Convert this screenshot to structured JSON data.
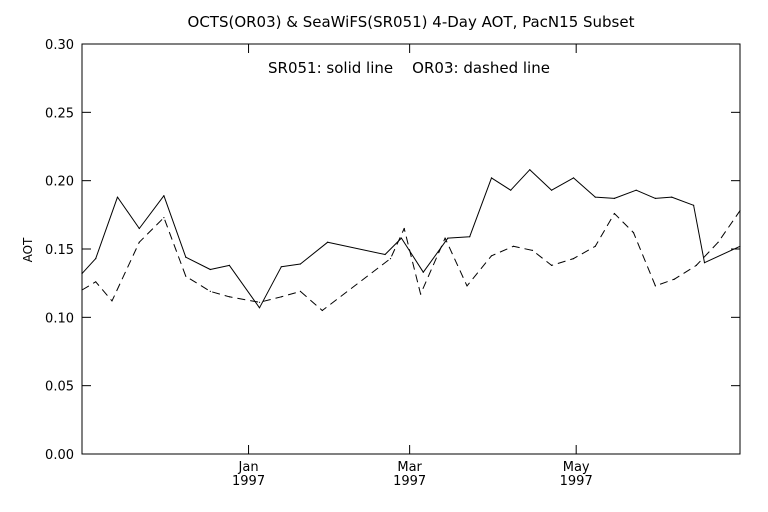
{
  "chart_data": {
    "type": "line",
    "title": "OCTS(OR03) & SeaWiFS(SR051) 4-Day AOT, PacN15 Subset",
    "annotation": "SR051: solid line    OR03: dashed line",
    "xlabel": "",
    "ylabel": "AOT",
    "ylim": [
      0.0,
      0.3
    ],
    "y_ticks": [
      "0.00",
      "0.05",
      "0.10",
      "0.15",
      "0.20",
      "0.25",
      "0.30"
    ],
    "x_ticks": [
      {
        "month": "Jan",
        "year": "1997",
        "date": "1997-01-01"
      },
      {
        "month": "Mar",
        "year": "1997",
        "date": "1997-03-01"
      },
      {
        "month": "May",
        "year": "1997",
        "date": "1997-05-01"
      }
    ],
    "xlim": [
      "1996-11-01",
      "1997-06-30"
    ],
    "grid": false,
    "legend": "none",
    "series": [
      {
        "name": "SR051",
        "line_style": "solid",
        "color": "#000000",
        "points": [
          [
            "1996-11-01",
            0.132
          ],
          [
            "1996-11-06",
            0.143
          ],
          [
            "1996-11-14",
            0.188
          ],
          [
            "1996-11-22",
            0.165
          ],
          [
            "1996-12-01",
            0.189
          ],
          [
            "1996-12-09",
            0.144
          ],
          [
            "1996-12-18",
            0.135
          ],
          [
            "1996-12-25",
            0.138
          ],
          [
            "1997-01-05",
            0.107
          ],
          [
            "1997-01-13",
            0.137
          ],
          [
            "1997-01-20",
            0.139
          ],
          [
            "1997-01-30",
            0.155
          ],
          [
            "1997-02-20",
            0.146
          ],
          [
            "1997-02-26",
            0.158
          ],
          [
            "1997-03-06",
            0.133
          ],
          [
            "1997-03-15",
            0.158
          ],
          [
            "1997-03-23",
            0.159
          ],
          [
            "1997-03-31",
            0.202
          ],
          [
            "1997-04-07",
            0.193
          ],
          [
            "1997-04-14",
            0.208
          ],
          [
            "1997-04-22",
            0.193
          ],
          [
            "1997-04-30",
            0.202
          ],
          [
            "1997-05-08",
            0.188
          ],
          [
            "1997-05-15",
            0.187
          ],
          [
            "1997-05-23",
            0.193
          ],
          [
            "1997-05-30",
            0.187
          ],
          [
            "1997-06-05",
            0.188
          ],
          [
            "1997-06-13",
            0.182
          ],
          [
            "1997-06-17",
            0.14
          ],
          [
            "1997-06-30",
            0.152
          ]
        ]
      },
      {
        "name": "OR03",
        "line_style": "dashed",
        "color": "#000000",
        "points": [
          [
            "1996-11-01",
            0.12
          ],
          [
            "1996-11-06",
            0.126
          ],
          [
            "1996-11-12",
            0.112
          ],
          [
            "1996-11-22",
            0.155
          ],
          [
            "1996-12-01",
            0.173
          ],
          [
            "1996-12-09",
            0.13
          ],
          [
            "1996-12-18",
            0.119
          ],
          [
            "1996-12-25",
            0.115
          ],
          [
            "1997-01-05",
            0.111
          ],
          [
            "1997-01-13",
            0.115
          ],
          [
            "1997-01-20",
            0.119
          ],
          [
            "1997-01-28",
            0.105
          ],
          [
            "1997-02-22",
            0.143
          ],
          [
            "1997-02-27",
            0.165
          ],
          [
            "1997-03-05",
            0.117
          ],
          [
            "1997-03-14",
            0.158
          ],
          [
            "1997-03-22",
            0.123
          ],
          [
            "1997-03-31",
            0.145
          ],
          [
            "1997-04-08",
            0.152
          ],
          [
            "1997-04-15",
            0.149
          ],
          [
            "1997-04-22",
            0.138
          ],
          [
            "1997-04-30",
            0.143
          ],
          [
            "1997-05-08",
            0.152
          ],
          [
            "1997-05-15",
            0.176
          ],
          [
            "1997-05-22",
            0.162
          ],
          [
            "1997-05-30",
            0.123
          ],
          [
            "1997-06-06",
            0.128
          ],
          [
            "1997-06-14",
            0.138
          ],
          [
            "1997-06-22",
            0.155
          ],
          [
            "1997-06-30",
            0.178
          ]
        ]
      }
    ]
  }
}
